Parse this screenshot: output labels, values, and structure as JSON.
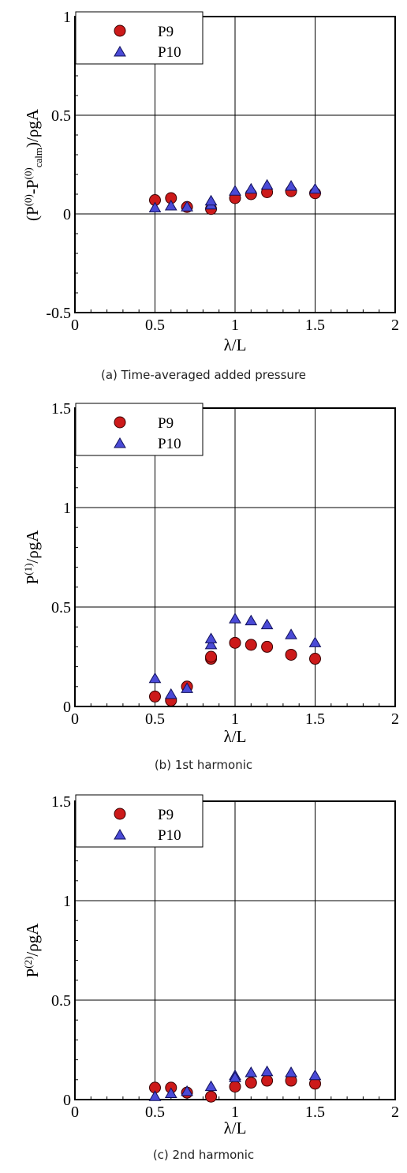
{
  "colors": {
    "p9": "#cc1a1a",
    "p10": "#4a4ad6",
    "grid": "#000000"
  },
  "chart_data": [
    {
      "type": "scatter",
      "caption": "(a) Time-averaged added pressure",
      "ylabel": "(P(0)-P(0)calm)/ρgA",
      "ylabel_base": "(P",
      "ylabel_sup1": "(0)",
      "ylabel_mid": "-P",
      "ylabel_sup2": "(0)",
      "ylabel_sub": "calm",
      "ylabel_tail": ")/ρgA",
      "xlabel": "λ/L",
      "xlim": [
        0,
        2
      ],
      "ylim": [
        -0.5,
        1
      ],
      "xticks": [
        0,
        0.5,
        1,
        1.5,
        2
      ],
      "xtick_labels": [
        "0",
        "0.5",
        "1",
        "1.5",
        "2"
      ],
      "yticks": [
        -0.5,
        0,
        0.5,
        1
      ],
      "ytick_labels": [
        "-0.5",
        "0",
        "0.5",
        "1"
      ],
      "grid": true,
      "legend": "top-left",
      "series": [
        {
          "name": "P9",
          "marker": "circle",
          "x": [
            0.5,
            0.6,
            0.7,
            0.85,
            1.0,
            1.1,
            1.2,
            1.35,
            1.5
          ],
          "y": [
            0.07,
            0.08,
            0.035,
            0.025,
            0.08,
            0.1,
            0.11,
            0.115,
            0.105
          ]
        },
        {
          "name": "P10",
          "marker": "triangle",
          "x": [
            0.5,
            0.6,
            0.7,
            0.85,
            0.85,
            1.0,
            1.1,
            1.2,
            1.35,
            1.5
          ],
          "y": [
            0.03,
            0.04,
            0.035,
            0.045,
            0.065,
            0.115,
            0.125,
            0.145,
            0.14,
            0.125
          ]
        }
      ]
    },
    {
      "type": "scatter",
      "caption": "(b) 1st harmonic",
      "ylabel": "P(1)/ρgA",
      "ylabel_base": "P",
      "ylabel_sup1": "(1)",
      "ylabel_tail": "/ρgA",
      "xlabel": "λ/L",
      "xlim": [
        0,
        2
      ],
      "ylim": [
        0,
        1.5
      ],
      "xticks": [
        0,
        0.5,
        1,
        1.5,
        2
      ],
      "xtick_labels": [
        "0",
        "0.5",
        "1",
        "1.5",
        "2"
      ],
      "yticks": [
        0,
        0.5,
        1,
        1.5
      ],
      "ytick_labels": [
        "0",
        "0.5",
        "1",
        "1.5"
      ],
      "grid": true,
      "legend": "top-left",
      "series": [
        {
          "name": "P9",
          "marker": "circle",
          "x": [
            0.5,
            0.6,
            0.7,
            0.85,
            0.85,
            1.0,
            1.1,
            1.2,
            1.35,
            1.5
          ],
          "y": [
            0.05,
            0.03,
            0.1,
            0.24,
            0.25,
            0.32,
            0.31,
            0.3,
            0.26,
            0.24
          ]
        },
        {
          "name": "P10",
          "marker": "triangle",
          "x": [
            0.5,
            0.6,
            0.7,
            0.85,
            0.85,
            1.0,
            1.1,
            1.2,
            1.35,
            1.5
          ],
          "y": [
            0.14,
            0.06,
            0.09,
            0.31,
            0.34,
            0.44,
            0.43,
            0.41,
            0.36,
            0.32
          ]
        }
      ]
    },
    {
      "type": "scatter",
      "caption": "(c) 2nd harmonic",
      "ylabel": "P(2)/ρgA",
      "ylabel_base": "P",
      "ylabel_sup1": "(2)",
      "ylabel_tail": "/ρgA",
      "xlabel": "λ/L",
      "xlim": [
        0,
        2
      ],
      "ylim": [
        0,
        1.5
      ],
      "xticks": [
        0,
        0.5,
        1,
        1.5,
        2
      ],
      "xtick_labels": [
        "0",
        "0.5",
        "1",
        "1.5",
        "2"
      ],
      "yticks": [
        0,
        0.5,
        1,
        1.5
      ],
      "ytick_labels": [
        "0",
        "0.5",
        "1",
        "1.5"
      ],
      "grid": true,
      "legend": "top-left",
      "series": [
        {
          "name": "P9",
          "marker": "circle",
          "x": [
            0.5,
            0.6,
            0.7,
            0.85,
            1.0,
            1.1,
            1.2,
            1.35,
            1.5
          ],
          "y": [
            0.06,
            0.06,
            0.035,
            0.015,
            0.065,
            0.085,
            0.095,
            0.095,
            0.08
          ]
        },
        {
          "name": "P10",
          "marker": "triangle",
          "x": [
            0.5,
            0.6,
            0.7,
            0.85,
            1.0,
            1.0,
            1.1,
            1.2,
            1.35,
            1.5
          ],
          "y": [
            0.015,
            0.03,
            0.04,
            0.065,
            0.12,
            0.11,
            0.135,
            0.14,
            0.135,
            0.12
          ]
        }
      ]
    }
  ]
}
